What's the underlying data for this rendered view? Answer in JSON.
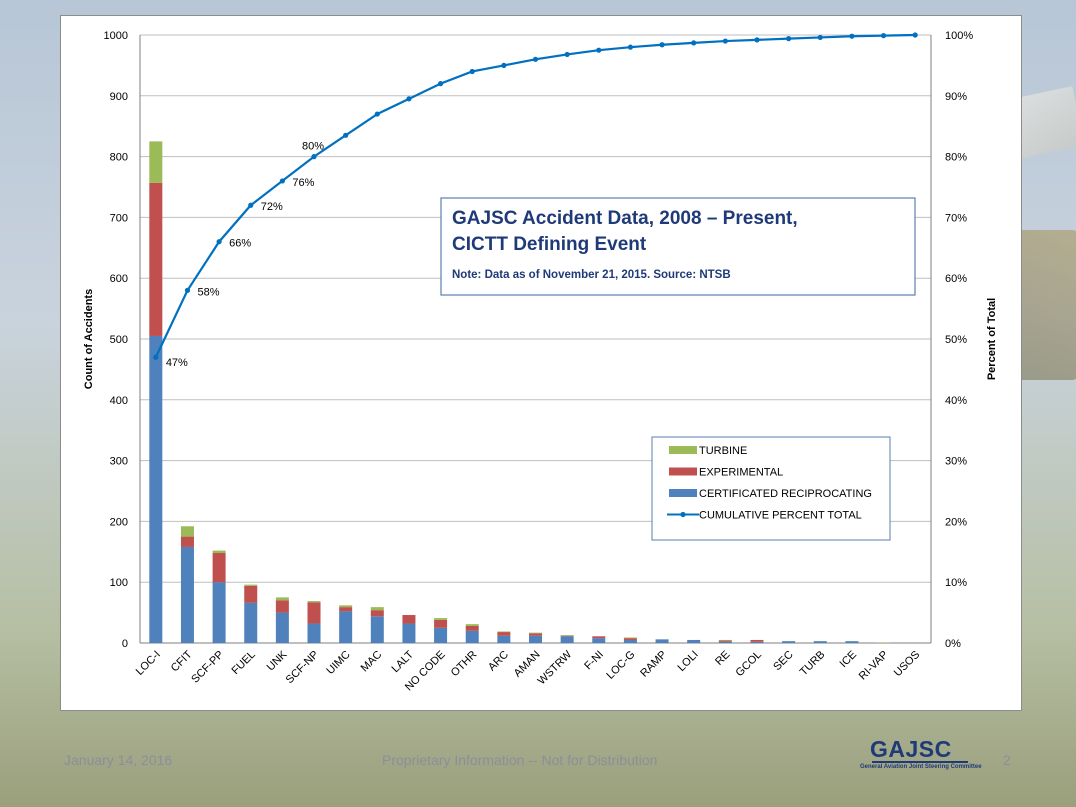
{
  "chart_data": {
    "type": "bar",
    "stacked": true,
    "title": "GAJSC Accident Data, 2008 – Present,",
    "title_line2": "CICTT Defining Event",
    "note": "Note: Data as of November 21, 2015. Source: NTSB",
    "ylabel": "Count of Accidents",
    "y2label": "Percent of Total",
    "ylim": [
      0,
      1000
    ],
    "y_ticks": [
      "0",
      "100",
      "200",
      "300",
      "400",
      "500",
      "600",
      "700",
      "800",
      "900",
      "1000"
    ],
    "y2_ticks": [
      "0%",
      "10%",
      "20%",
      "30%",
      "40%",
      "50%",
      "60%",
      "70%",
      "80%",
      "90%",
      "100%"
    ],
    "grid": true,
    "categories": [
      "LOC-I",
      "CFIT",
      "SCF-PP",
      "FUEL",
      "UNK",
      "SCF-NP",
      "UIMC",
      "MAC",
      "LALT",
      "NO CODE",
      "OTHR",
      "ARC",
      "AMAN",
      "WSTRW",
      "F-NI",
      "LOC-G",
      "RAMP",
      "LOLI",
      "RE",
      "GCOL",
      "SEC",
      "TURB",
      "ICE",
      "RI-VAP",
      "USOS"
    ],
    "series": [
      {
        "name": "CERTIFICATED RECIPROCATING",
        "color": "#4f81bd",
        "values": [
          505,
          158,
          100,
          66,
          50,
          32,
          52,
          44,
          32,
          25,
          20,
          12,
          12,
          11,
          8,
          5,
          6,
          5,
          2,
          2,
          3,
          3,
          3,
          0,
          0
        ]
      },
      {
        "name": "EXPERIMENTAL",
        "color": "#c0504d",
        "values": [
          252,
          17,
          48,
          28,
          20,
          35,
          7,
          10,
          14,
          13,
          8,
          6,
          4,
          1,
          3,
          3,
          0,
          0,
          2,
          3,
          0,
          0,
          0,
          0,
          0
        ]
      },
      {
        "name": "TURBINE",
        "color": "#9bbb59",
        "values": [
          68,
          17,
          4,
          2,
          5,
          2,
          3,
          5,
          0,
          3,
          3,
          1,
          1,
          1,
          0,
          1,
          0,
          0,
          1,
          0,
          0,
          0,
          0,
          1,
          0
        ]
      }
    ],
    "line_series": {
      "name": "CUMULATIVE PERCENT TOTAL",
      "color": "#0070c0",
      "axis": "right",
      "values": [
        47,
        58,
        66,
        72,
        76,
        80,
        83.5,
        87,
        89.5,
        92,
        94,
        95,
        96,
        96.8,
        97.5,
        98,
        98.4,
        98.7,
        99,
        99.2,
        99.4,
        99.6,
        99.8,
        99.9,
        100
      ],
      "point_labels": [
        {
          "index": 0,
          "text": "47%"
        },
        {
          "index": 1,
          "text": "58%"
        },
        {
          "index": 2,
          "text": "66%"
        },
        {
          "index": 3,
          "text": "72%"
        },
        {
          "index": 4,
          "text": "76%"
        },
        {
          "index": 5,
          "text": "80%"
        }
      ]
    },
    "legend": [
      {
        "label": "TURBINE",
        "color": "#9bbb59",
        "kind": "bar"
      },
      {
        "label": "EXPERIMENTAL",
        "color": "#c0504d",
        "kind": "bar"
      },
      {
        "label": "CERTIFICATED RECIPROCATING",
        "color": "#4f81bd",
        "kind": "bar"
      },
      {
        "label": "CUMULATIVE PERCENT TOTAL",
        "color": "#0070c0",
        "kind": "line"
      }
    ],
    "legend_position": "lower-right",
    "title_color": "#1f3a78"
  },
  "footer": {
    "date": "January 14, 2016",
    "notice": "Proprietary Information -- Not for Distribution",
    "page": "2"
  },
  "logo": {
    "text": "GAJSC",
    "subtitle": "General Aviation Joint Steering Committee"
  }
}
